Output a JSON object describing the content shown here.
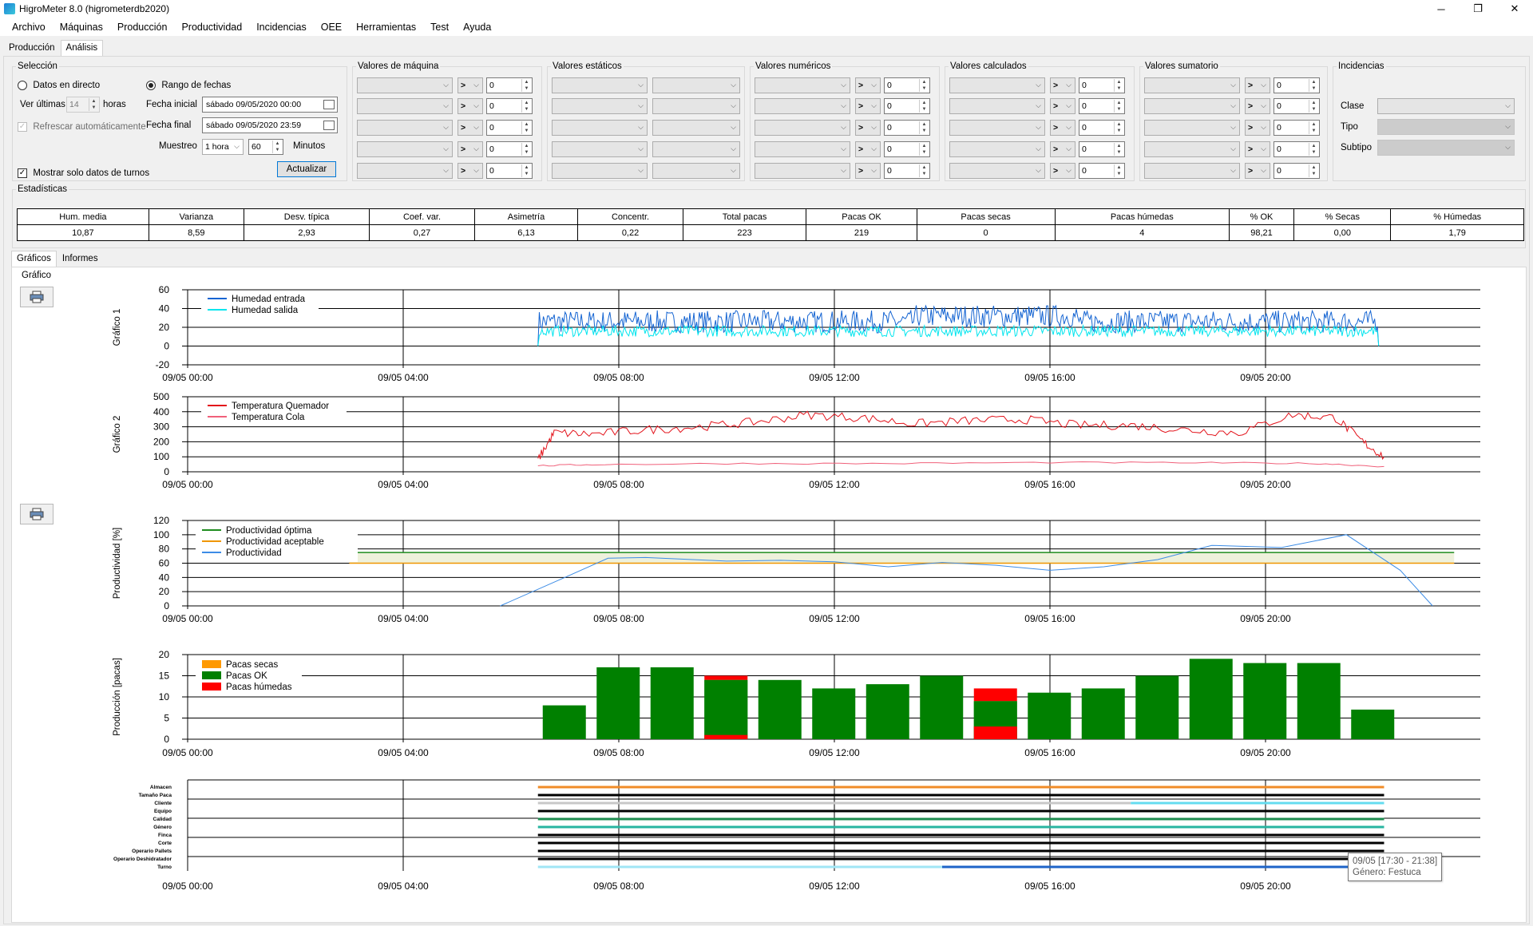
{
  "window": {
    "title": "HigroMeter 8.0 (higrometerdb2020)",
    "controls": {
      "minimize": "─",
      "maximize": "❐",
      "close": "✕"
    }
  },
  "menu": [
    "Archivo",
    "Máquinas",
    "Producción",
    "Productividad",
    "Incidencias",
    "OEE",
    "Herramientas",
    "Test",
    "Ayuda"
  ],
  "top_tabs": [
    "Producción",
    "Análisis"
  ],
  "seleccion": {
    "legend": "Selección",
    "live_label": "Datos en directo",
    "range_label": "Rango de fechas",
    "ver_ultimas_label": "Ver últimas",
    "ver_ultimas_value": "14",
    "horas_label": "horas",
    "refrescar_label": "Refrescar automáticamente",
    "fecha_inicial_label": "Fecha inicial",
    "fecha_inicial_value": "sábado  09/05/2020 00:00",
    "fecha_final_label": "Fecha final",
    "fecha_final_value": "sábado  09/05/2020 23:59",
    "muestreo_label": "Muestreo",
    "muestreo_value": "1 hora",
    "minutos_value": "60",
    "minutos_label": "Minutos",
    "actualizar_label": "Actualizar",
    "turnos_label": "Mostrar solo datos de turnos"
  },
  "filter_groups": [
    {
      "legend": "Valores de máquina",
      "operator": ">",
      "value": "0"
    },
    {
      "legend": "Valores estáticos"
    },
    {
      "legend": "Valores numéricos",
      "operator": ">",
      "value": "0"
    },
    {
      "legend": "Valores calculados",
      "operator": ">",
      "value": "0"
    },
    {
      "legend": "Valores sumatorio",
      "operator": ">",
      "value": "0"
    }
  ],
  "incidencias": {
    "legend": "Incidencias",
    "clase_label": "Clase",
    "tipo_label": "Tipo",
    "subtipo_label": "Subtipo"
  },
  "estadisticas": {
    "legend": "Estadísticas",
    "headers": [
      "Hum. media",
      "Varianza",
      "Desv. típica",
      "Coef. var.",
      "Asimetría",
      "Concentr.",
      "Total pacas",
      "Pacas OK",
      "Pacas secas",
      "Pacas húmedas",
      "% OK",
      "% Secas",
      "% Húmedas"
    ],
    "values": [
      "10,87",
      "8,59",
      "2,93",
      "0,27",
      "6,13",
      "0,22",
      "223",
      "219",
      "0",
      "4",
      "98,21",
      "0,00",
      "1,79"
    ]
  },
  "mid_tabs": [
    "Gráficos",
    "Informes"
  ],
  "grafico_label": "Gráfico",
  "chart_data": [
    {
      "type": "line",
      "ylabel": "Gráfico 1",
      "ylim": [
        -20,
        60
      ],
      "yticks": [
        60,
        40,
        20,
        0,
        -20
      ],
      "xlim_hours": [
        0,
        24
      ],
      "xticks": [
        "09/05 00:00",
        "09/05 04:00",
        "09/05 08:00",
        "09/05 12:00",
        "09/05 16:00",
        "09/05 20:00"
      ],
      "legend_position": "top-left",
      "series": [
        {
          "name": "Humedad entrada",
          "color": "#1464d2",
          "x_start": 6.5,
          "x_end": 22.1,
          "base": 26,
          "noise": 12
        },
        {
          "name": "Humedad salida",
          "color": "#00e5ee",
          "x_start": 6.5,
          "x_end": 22.1,
          "base": 16,
          "noise": 6
        }
      ]
    },
    {
      "type": "line",
      "ylabel": "Gráfico 2",
      "ylim": [
        0,
        500
      ],
      "yticks": [
        500,
        400,
        300,
        200,
        100,
        0
      ],
      "xlim_hours": [
        0,
        24
      ],
      "xticks": [
        "09/05 00:00",
        "09/05 04:00",
        "09/05 08:00",
        "09/05 12:00",
        "09/05 16:00",
        "09/05 20:00"
      ],
      "legend_position": "top-left",
      "series": [
        {
          "name": "Temperatura Quemador",
          "color": "#e3131b",
          "x": [
            6.5,
            6.8,
            7.5,
            8.5,
            9.5,
            10.5,
            11.5,
            12.5,
            13.5,
            14.5,
            15.5,
            16.5,
            17.5,
            18.5,
            19.5,
            20.5,
            21.3,
            21.8,
            22.2
          ],
          "y": [
            80,
            260,
            250,
            280,
            300,
            330,
            380,
            360,
            320,
            340,
            350,
            310,
            310,
            280,
            260,
            380,
            360,
            200,
            100
          ]
        },
        {
          "name": "Temperatura Cola",
          "color": "#f0607a",
          "x": [
            6.5,
            7.5,
            10,
            13,
            16,
            19,
            21,
            22.2
          ],
          "y": [
            40,
            48,
            55,
            55,
            62,
            60,
            55,
            35
          ]
        }
      ]
    },
    {
      "type": "line",
      "ylabel": "Productividad [%]",
      "ylim": [
        0,
        120
      ],
      "yticks": [
        120,
        100,
        80,
        60,
        40,
        20,
        0
      ],
      "xlim_hours": [
        0,
        24
      ],
      "xticks": [
        "09/05 00:00",
        "09/05 04:00",
        "09/05 08:00",
        "09/05 12:00",
        "09/05 16:00",
        "09/05 20:00"
      ],
      "legend_position": "top-left",
      "bands": [
        {
          "name": "Productividad óptima",
          "color": "#1e8c1e",
          "y": 75,
          "x_start": 3,
          "x_end": 23.5
        },
        {
          "name": "Productividad aceptable",
          "color": "#f09600",
          "y": 60,
          "x_start": 3,
          "x_end": 23.5
        }
      ],
      "series": [
        {
          "name": "Productividad",
          "color": "#3c8ce6",
          "x": [
            5.8,
            7,
            7.8,
            8.5,
            10,
            11,
            12,
            13,
            14,
            15,
            16,
            17,
            18,
            19,
            20.3,
            21.5,
            22.5,
            23.1
          ],
          "y": [
            0,
            40,
            67,
            68,
            63,
            64,
            62,
            55,
            61,
            57,
            50,
            55,
            65,
            85,
            82,
            100,
            50,
            0
          ]
        }
      ]
    },
    {
      "type": "bar",
      "ylabel": "Producción [pacas]",
      "ylim": [
        0,
        20
      ],
      "yticks": [
        20,
        15,
        10,
        5,
        0
      ],
      "xlim_hours": [
        0,
        24
      ],
      "xticks": [
        "09/05 00:00",
        "09/05 04:00",
        "09/05 08:00",
        "09/05 12:00",
        "09/05 16:00",
        "09/05 20:00"
      ],
      "legend_position": "top-left",
      "hours": [
        7,
        8,
        9,
        10,
        11,
        12,
        13,
        14,
        15,
        16,
        17,
        18,
        19,
        20,
        21,
        22
      ],
      "series": [
        {
          "name": "Pacas secas",
          "color": "#ff9900",
          "values": [
            0,
            0,
            0,
            0,
            0,
            0,
            0,
            0,
            0,
            0,
            0,
            0,
            0,
            0,
            0,
            0
          ]
        },
        {
          "name": "Pacas OK",
          "color": "#008000",
          "values": [
            8,
            17,
            17,
            14,
            14,
            12,
            13,
            15,
            9,
            11,
            12,
            15,
            19,
            18,
            18,
            7
          ]
        },
        {
          "name": "Pacas húmedas",
          "color": "#ff0000",
          "values": [
            0,
            0,
            0,
            1,
            0,
            0,
            0,
            0,
            3,
            0,
            0,
            0,
            0,
            0,
            0,
            0
          ]
        }
      ]
    },
    {
      "type": "timeline",
      "xlim_hours": [
        0,
        24
      ],
      "xticks": [
        "09/05 00:00",
        "09/05 04:00",
        "09/05 08:00",
        "09/05 12:00",
        "09/05 16:00",
        "09/05 20:00"
      ],
      "rows": [
        {
          "label": "Almacen",
          "segments": [
            {
              "from": 6.5,
              "to": 22.2,
              "color": "#f08c28"
            }
          ]
        },
        {
          "label": "Tamaño Paca",
          "segments": [
            {
              "from": 6.5,
              "to": 22.2,
              "color": "#000000"
            }
          ]
        },
        {
          "label": "Cliente",
          "segments": [
            {
              "from": 6.5,
              "to": 17.5,
              "color": "#c8c8c8"
            },
            {
              "from": 17.5,
              "to": 22.2,
              "color": "#64dcf0"
            }
          ]
        },
        {
          "label": "Equipo",
          "segments": [
            {
              "from": 6.5,
              "to": 22.2,
              "color": "#000000"
            }
          ]
        },
        {
          "label": "Calidad",
          "segments": [
            {
              "from": 6.5,
              "to": 22.2,
              "color": "#1e8c50"
            }
          ]
        },
        {
          "label": "Género",
          "segments": [
            {
              "from": 6.5,
              "to": 22.2,
              "color": "#28b4a0"
            }
          ]
        },
        {
          "label": "Finca",
          "segments": [
            {
              "from": 6.5,
              "to": 22.2,
              "color": "#000000"
            }
          ]
        },
        {
          "label": "Corte",
          "segments": [
            {
              "from": 6.5,
              "to": 22.2,
              "color": "#000000"
            }
          ]
        },
        {
          "label": "Operario Pallets",
          "segments": [
            {
              "from": 6.5,
              "to": 22.2,
              "color": "#000000"
            }
          ]
        },
        {
          "label": "Operario Deshidratador",
          "segments": [
            {
              "from": 6.5,
              "to": 22.2,
              "color": "#000000"
            }
          ]
        },
        {
          "label": "Turno",
          "segments": [
            {
              "from": 6.5,
              "to": 14,
              "color": "#a0e6f5"
            },
            {
              "from": 14,
              "to": 22.2,
              "color": "#1e64c8"
            }
          ]
        }
      ]
    }
  ],
  "tooltip": {
    "line1": "09/05 [17:30 - 21:38]",
    "line2": "Género: Festuca"
  },
  "colors": {
    "accent": "#0078d7"
  },
  "icons": [
    "printer-icon",
    "calendar-icon",
    "chevron-down-icon"
  ]
}
